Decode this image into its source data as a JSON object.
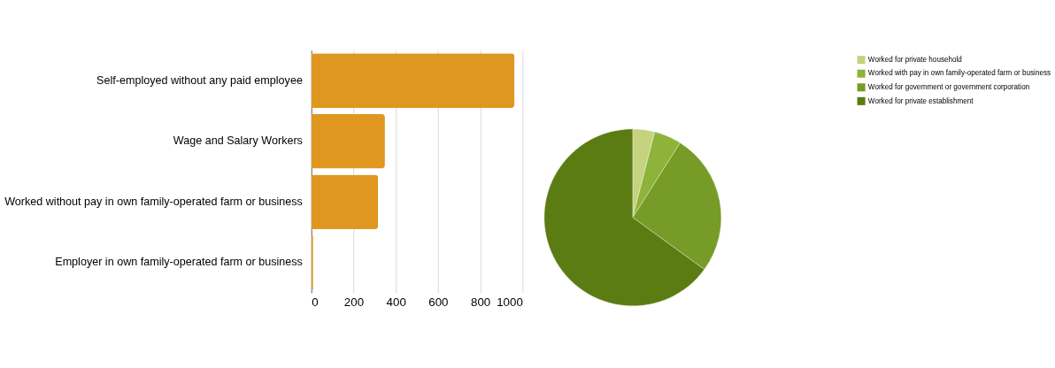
{
  "chart_data": [
    {
      "type": "bar",
      "orientation": "horizontal",
      "categories": [
        "Self-employed without any paid employee",
        "Wage and Salary Workers",
        "Worked without pay in own family-operated farm or business",
        "Employer in own family-operated farm or business"
      ],
      "values": [
        962,
        348,
        316,
        8
      ],
      "color": "#e0971f",
      "xlim": [
        0,
        1000
      ],
      "xticks": [
        0,
        200,
        400,
        600,
        800,
        1000
      ],
      "grid": "x"
    },
    {
      "type": "pie",
      "categories": [
        "Worked for private household",
        "Worked with pay in own family-operated farm or business",
        "Worked for government or government corporation",
        "Worked for private establishment"
      ],
      "values": [
        4,
        5,
        26,
        65
      ],
      "colors": [
        "#c5d27e",
        "#8db33a",
        "#779b27",
        "#5b7c12"
      ],
      "legend": "top"
    }
  ]
}
